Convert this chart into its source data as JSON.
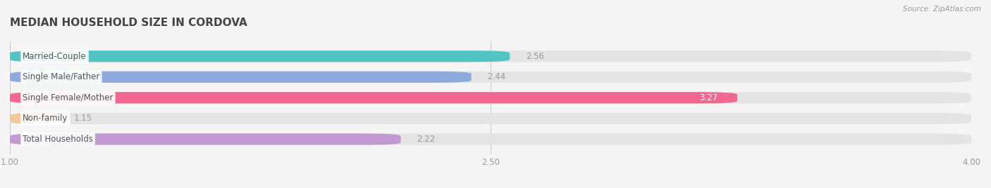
{
  "title": "MEDIAN HOUSEHOLD SIZE IN CORDOVA",
  "source": "Source: ZipAtlas.com",
  "categories": [
    "Married-Couple",
    "Single Male/Father",
    "Single Female/Mother",
    "Non-family",
    "Total Households"
  ],
  "values": [
    2.56,
    2.44,
    3.27,
    1.15,
    2.22
  ],
  "bar_colors": [
    "#52c4c4",
    "#90aade",
    "#f06890",
    "#f5c89a",
    "#c09ad0"
  ],
  "background_color": "#f5f5f5",
  "bar_bg_color": "#e8e8e8",
  "xlim": [
    1.0,
    4.0
  ],
  "xticks": [
    1.0,
    2.5,
    4.0
  ],
  "label_color": "#555555",
  "title_color": "#444444",
  "tick_color": "#999999",
  "value_color_outside": "#999999",
  "value_color_inside": "#ffffff",
  "title_fontsize": 11,
  "label_fontsize": 8.5,
  "value_fontsize": 8.5,
  "source_fontsize": 7.5,
  "bar_height": 0.55,
  "bar_gap": 0.45
}
